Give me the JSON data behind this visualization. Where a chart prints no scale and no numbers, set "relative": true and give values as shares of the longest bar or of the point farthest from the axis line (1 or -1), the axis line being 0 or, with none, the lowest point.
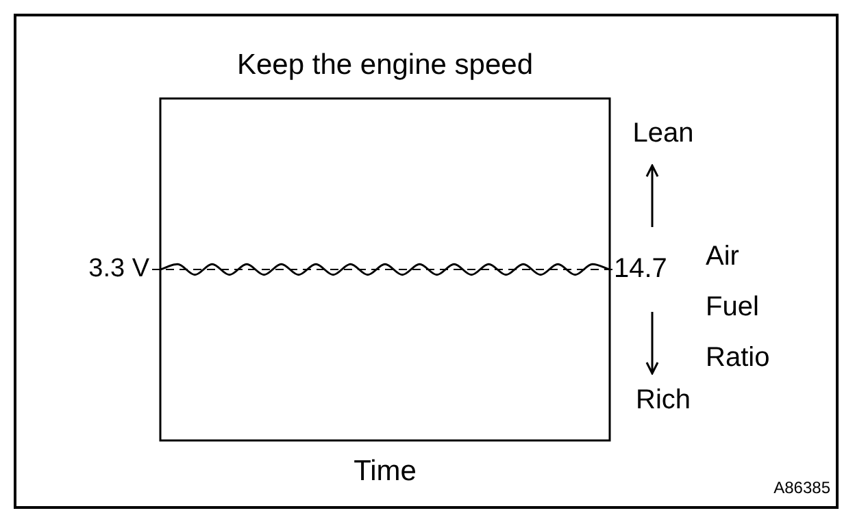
{
  "chart_data": {
    "type": "line",
    "title": "Keep the engine speed",
    "xlabel": "Time",
    "y2label": "Air Fuel Ratio",
    "relative": true,
    "legend": false,
    "marker": "none",
    "categories": [
      null,
      null,
      null,
      null,
      null,
      null,
      null,
      null,
      null,
      null,
      null,
      null,
      null,
      null,
      null,
      null,
      null,
      null,
      null,
      null,
      null,
      null,
      null,
      null,
      null,
      null,
      null
    ],
    "series": [
      {
        "color": "#000000",
        "values": [
          0.97,
          1,
          0.94,
          1,
          0.94,
          1,
          0.94,
          1,
          0.94,
          1,
          0.94,
          1,
          0.94,
          1,
          0.94,
          1,
          0.94,
          1,
          0.94,
          1,
          0.94,
          1,
          0.94,
          1,
          0.94,
          1,
          0.97
        ]
      }
    ],
    "ref_lines": [
      {
        "axis": "y",
        "value": 0.97,
        "label": "3.3 V",
        "line_style": "dashed",
        "color": "#000000"
      }
    ],
    "annotations": [
      "Lean",
      "Rich",
      "14.7",
      "A86385"
    ]
  }
}
